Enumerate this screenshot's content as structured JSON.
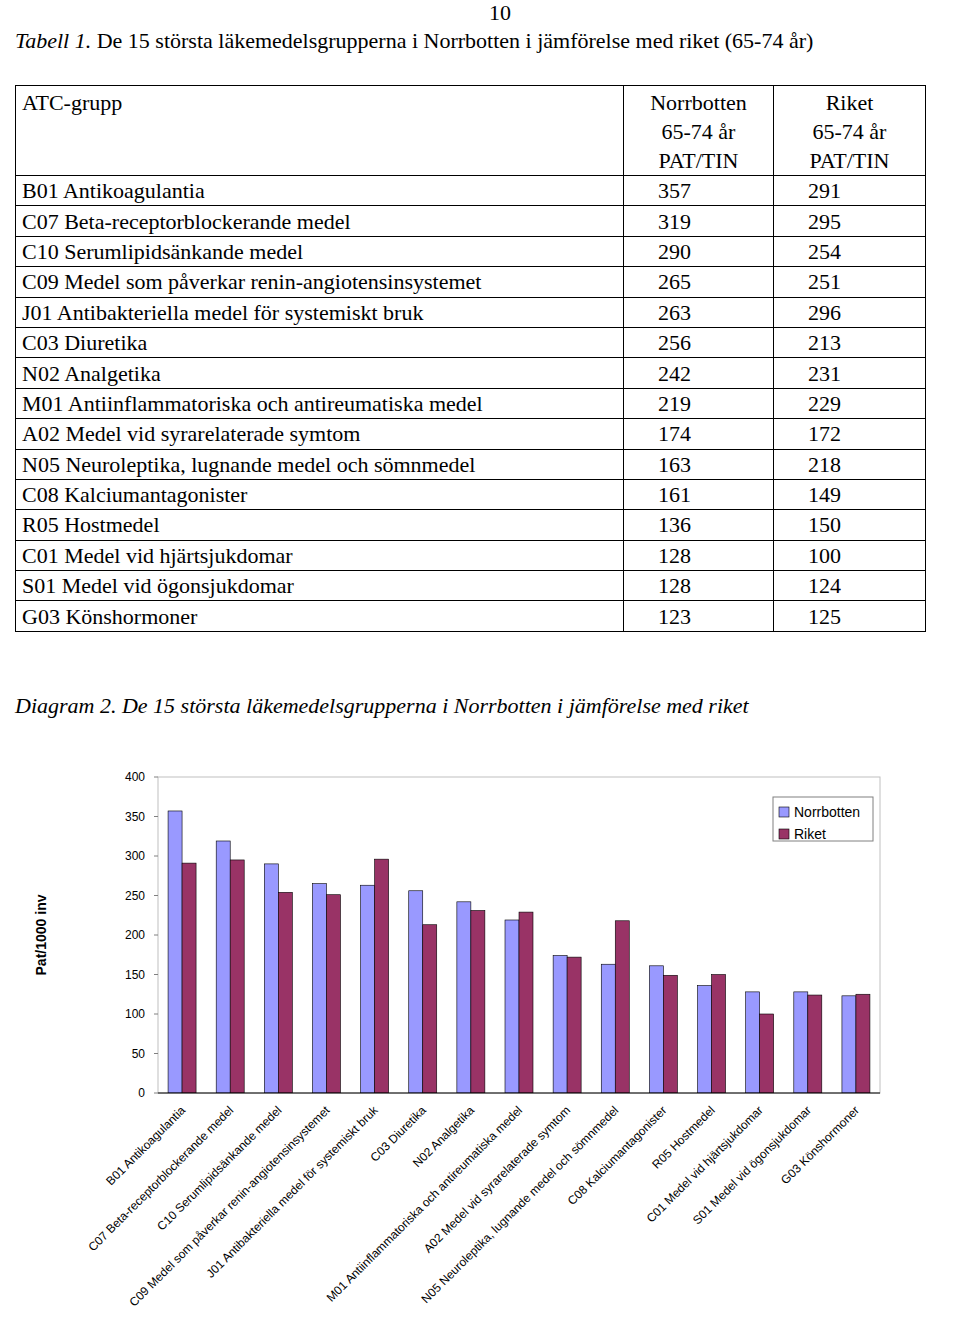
{
  "page_number": "10",
  "table": {
    "caption_label": "Tabell 1.",
    "caption_text": "De 15 största läkemedelsgrupperna i Norrbotten i jämförelse med riket (65-74 år)",
    "headers": [
      [
        "ATC-grupp"
      ],
      [
        "Norrbotten",
        "65-74 år",
        "PAT/TIN"
      ],
      [
        "Riket",
        "65-74 år",
        "PAT/TIN"
      ]
    ],
    "rows": [
      [
        "B01 Antikoagulantia",
        357,
        291
      ],
      [
        "C07 Beta-receptorblockerande medel",
        319,
        295
      ],
      [
        "C10 Serumlipidsänkande medel",
        290,
        254
      ],
      [
        "C09 Medel som påverkar renin-angiotensinsystemet",
        265,
        251
      ],
      [
        "J01 Antibakteriella medel för systemiskt bruk",
        263,
        296
      ],
      [
        "C03 Diuretika",
        256,
        213
      ],
      [
        "N02 Analgetika",
        242,
        231
      ],
      [
        "M01 Antiinflammatoriska och antireumatiska medel",
        219,
        229
      ],
      [
        "A02 Medel vid syrarelaterade symtom",
        174,
        172
      ],
      [
        "N05 Neuroleptika, lugnande medel och sömnmedel",
        163,
        218
      ],
      [
        "C08 Kalciumantagonister",
        161,
        149
      ],
      [
        "R05 Hostmedel",
        136,
        150
      ],
      [
        "C01 Medel vid hjärtsjukdomar",
        128,
        100
      ],
      [
        "S01 Medel vid ögonsjukdomar",
        128,
        124
      ],
      [
        "G03 Könshormoner",
        123,
        125
      ]
    ]
  },
  "chart_data": {
    "type": "bar",
    "title_label": "Diagram 2.",
    "title": "De 15 största läkemedelsgrupperna i Norrbotten i jämförelse med riket",
    "y_label": "Pat/1000 inv",
    "categories": [
      "B01 Antikoagulantia",
      "C07 Beta-receptorblockerande medel",
      "C10 Serumlipidsänkande medel",
      "C09 Medel som påverkar renin-angiotensinsystemet",
      "J01 Antibakteriella medel för systemiskt bruk",
      "C03 Diuretika",
      "N02 Analgetika",
      "M01 Antiinflammatoriska och antireumatiska medel",
      "A02 Medel vid syrarelaterade symtom",
      "N05 Neuroleptika, lugnande medel och sömnmedel",
      "C08 Kalciumantagonister",
      "R05 Hostmedel",
      "C01 Medel vid hjärtsjukdomar",
      "S01 Medel vid ögonsjukdomar",
      "G03 Könshormoner"
    ],
    "series": [
      {
        "name": "Norrbotten",
        "color": "#9999ff",
        "values": [
          357,
          319,
          290,
          265,
          263,
          256,
          242,
          219,
          174,
          163,
          161,
          136,
          128,
          128,
          123
        ]
      },
      {
        "name": "Riket",
        "color": "#993366",
        "values": [
          291,
          295,
          254,
          251,
          296,
          213,
          231,
          229,
          172,
          218,
          149,
          150,
          100,
          124,
          125
        ]
      }
    ],
    "ylim": [
      0,
      400
    ],
    "yticks": [
      0,
      50,
      100,
      150,
      200,
      250,
      300,
      350,
      400
    ],
    "grid": false,
    "legend": "top-right"
  }
}
